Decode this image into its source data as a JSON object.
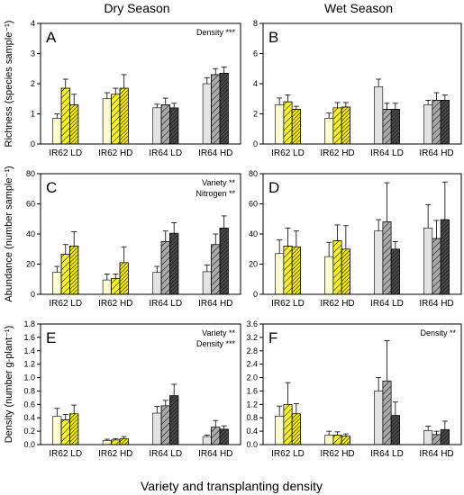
{
  "figure": {
    "col_titles": [
      "Dry Season",
      "Wet Season"
    ],
    "xlabel_common": "Variety and transplanting density"
  },
  "chart_data": [
    {
      "type": "bar",
      "panel": "A",
      "categories": [
        "IR62 LD",
        "IR62 HD",
        "IR64 LD",
        "IR64 HD"
      ],
      "ylabel": "Richness (species sample⁻¹)",
      "ylim": [
        0,
        4
      ],
      "yticks": [
        "0",
        "1",
        "2",
        "3",
        "4"
      ],
      "annotation": [
        "Density ***"
      ],
      "series": [
        {
          "values": [
            0.85,
            1.5,
            1.2,
            2.0
          ],
          "errors": [
            0.15,
            0.2,
            0.12,
            0.2
          ]
        },
        {
          "values": [
            1.85,
            1.65,
            1.3,
            2.3
          ],
          "errors": [
            0.3,
            0.2,
            0.22,
            0.2
          ]
        },
        {
          "values": [
            1.3,
            1.85,
            1.2,
            2.35
          ],
          "errors": [
            0.35,
            0.45,
            0.15,
            0.2
          ]
        }
      ]
    },
    {
      "type": "bar",
      "panel": "B",
      "categories": [
        "IR62 LD",
        "IR62 HD",
        "IR64 LD",
        "IR64 HD"
      ],
      "ylabel": "",
      "ylim": [
        0,
        8
      ],
      "yticks": [
        "0",
        "2",
        "4",
        "6",
        "8"
      ],
      "annotation": [],
      "series": [
        {
          "values": [
            2.6,
            1.7,
            3.8,
            2.6
          ],
          "errors": [
            0.45,
            0.35,
            0.5,
            0.3
          ]
        },
        {
          "values": [
            2.8,
            2.4,
            2.3,
            2.9
          ],
          "errors": [
            0.45,
            0.35,
            0.4,
            0.5
          ]
        },
        {
          "values": [
            2.3,
            2.45,
            2.3,
            2.9
          ],
          "errors": [
            0.2,
            0.3,
            0.4,
            0.35
          ]
        }
      ]
    },
    {
      "type": "bar",
      "panel": "C",
      "categories": [
        "IR62 LD",
        "IR62 HD",
        "IR64 LD",
        "IR64 HD"
      ],
      "ylabel": "Abundance (number sample⁻¹)",
      "ylim": [
        0,
        80
      ],
      "yticks": [
        "0",
        "20",
        "40",
        "60",
        "80"
      ],
      "annotation": [
        "Variety **",
        "Nitrogen **"
      ],
      "series": [
        {
          "values": [
            14.5,
            9.5,
            14.5,
            15.0
          ],
          "errors": [
            4,
            4,
            4,
            4.5
          ]
        },
        {
          "values": [
            26.5,
            10.5,
            35.0,
            33.0
          ],
          "errors": [
            6.5,
            3,
            7,
            7
          ]
        },
        {
          "values": [
            32.0,
            21.0,
            40.5,
            44.0
          ],
          "errors": [
            9.5,
            10.5,
            7,
            8
          ]
        }
      ]
    },
    {
      "type": "bar",
      "panel": "D",
      "categories": [
        "IR62 LD",
        "IR62 HD",
        "IR64 LD",
        "IR64 HD"
      ],
      "ylabel": "",
      "ylim": [
        0,
        80
      ],
      "yticks": [
        "0",
        "20",
        "40",
        "60",
        "80"
      ],
      "annotation": [],
      "series": [
        {
          "values": [
            27.0,
            25.0,
            42.0,
            44.0
          ],
          "errors": [
            9,
            9.5,
            7.5,
            15.5
          ]
        },
        {
          "values": [
            32.0,
            35.5,
            48.0,
            37.0
          ],
          "errors": [
            12,
            10.5,
            26,
            12
          ]
        },
        {
          "values": [
            31.5,
            30.0,
            30.0,
            49.5
          ],
          "errors": [
            10.5,
            15.5,
            5,
            25
          ]
        }
      ]
    },
    {
      "type": "bar",
      "panel": "E",
      "categories": [
        "IR62 LD",
        "IR62 HD",
        "IR64 LD",
        "IR64 HD"
      ],
      "ylabel": "Density (number g-plant⁻¹)",
      "ylim": [
        0,
        1.8
      ],
      "yticks": [
        "0.0",
        "0.2",
        "0.4",
        "0.6",
        "0.8",
        "1.0",
        "1.2",
        "1.4",
        "1.6",
        "1.8"
      ],
      "annotation": [
        "Variety **",
        "Density ***"
      ],
      "series": [
        {
          "values": [
            0.42,
            0.06,
            0.47,
            0.12
          ],
          "errors": [
            0.12,
            0.02,
            0.1,
            0.02
          ]
        },
        {
          "values": [
            0.37,
            0.07,
            0.58,
            0.26
          ],
          "errors": [
            0.08,
            0.02,
            0.08,
            0.1
          ]
        },
        {
          "values": [
            0.46,
            0.09,
            0.73,
            0.23
          ],
          "errors": [
            0.13,
            0.03,
            0.17,
            0.05
          ]
        }
      ]
    },
    {
      "type": "bar",
      "panel": "F",
      "categories": [
        "IR62 LD",
        "IR62 HD",
        "IR64 LD",
        "IR64 HD"
      ],
      "ylabel": "",
      "ylim": [
        0,
        3.6
      ],
      "yticks": [
        "0.0",
        "0.4",
        "0.8",
        "1.2",
        "1.6",
        "2.0",
        "2.4",
        "2.8",
        "3.2",
        "3.6"
      ],
      "annotation": [
        "Density **"
      ],
      "series": [
        {
          "values": [
            0.85,
            0.28,
            1.6,
            0.42
          ],
          "errors": [
            0.3,
            0.12,
            0.4,
            0.13
          ]
        },
        {
          "values": [
            1.2,
            0.28,
            1.9,
            0.3
          ],
          "errors": [
            0.65,
            0.1,
            1.2,
            0.1
          ]
        },
        {
          "values": [
            0.92,
            0.25,
            0.87,
            0.45
          ],
          "errors": [
            0.3,
            0.07,
            0.4,
            0.25
          ]
        }
      ]
    }
  ],
  "colors": {
    "ir62_light": "#fdfbd0",
    "ir62_mid": "#f4ef2c",
    "ir62_dark": "#f0e619",
    "ir64_light": "#e3e3e3",
    "ir64_mid": "#a9a9a9",
    "ir64_dark": "#4a4a4a",
    "stroke": "#000000"
  }
}
